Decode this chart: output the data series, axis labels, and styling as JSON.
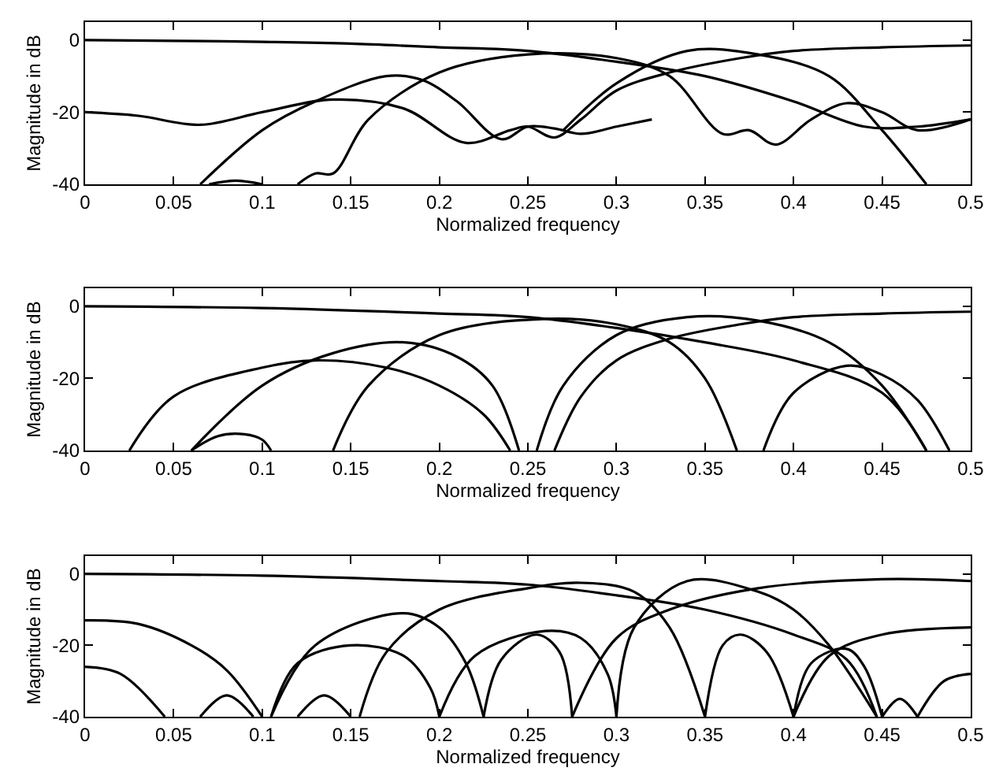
{
  "chart_data": [
    {
      "type": "line",
      "xlabel": "Normalized frequency",
      "ylabel": "Magnitude in dB",
      "xlim": [
        0,
        0.5
      ],
      "ylim": [
        -40,
        5
      ],
      "xticks": [
        0,
        0.05,
        0.1,
        0.15,
        0.2,
        0.25,
        0.3,
        0.35,
        0.4,
        0.45,
        0.5
      ],
      "yticks": [
        -40,
        -20,
        0
      ],
      "series": [
        {
          "color": "#000000",
          "x": [
            0,
            0.05,
            0.1,
            0.15,
            0.2,
            0.25,
            0.3,
            0.35,
            0.4,
            0.44,
            0.47,
            0.5
          ],
          "values": [
            0,
            -0.2,
            -0.5,
            -1,
            -2,
            -3,
            -6,
            -10,
            -17,
            -24,
            -24,
            -22
          ]
        },
        {
          "color": "#000000",
          "x": [
            0,
            0.03,
            0.065,
            0.1,
            0.14,
            0.18,
            0.215,
            0.24,
            0.25,
            0.265,
            0.28,
            0.3,
            0.33,
            0.37,
            0.4,
            0.45,
            0.5
          ],
          "values": [
            -20,
            -21,
            -23.5,
            -20,
            -16.5,
            -19,
            -28.5,
            -25,
            -24,
            -27,
            -22,
            -14,
            -9,
            -5,
            -3,
            -2,
            -1.5
          ]
        },
        {
          "color": "#000000",
          "x": [
            0.065,
            0.1,
            0.13,
            0.17,
            0.19,
            0.21,
            0.235,
            0.25,
            0.265,
            0.28,
            0.3,
            0.32
          ],
          "values": [
            -40,
            -25,
            -17,
            -10,
            -11,
            -17,
            -27.5,
            -24,
            -24.5,
            -26,
            -24,
            -22
          ]
        },
        {
          "color": "#000000",
          "x": [
            0.12,
            0.13,
            0.14,
            0.16,
            0.2,
            0.25,
            0.3,
            0.33,
            0.36,
            0.375,
            0.39,
            0.41,
            0.43,
            0.45,
            0.47,
            0.5
          ],
          "values": [
            -40,
            -37,
            -37,
            -22,
            -9,
            -4,
            -5,
            -10,
            -26,
            -25,
            -29,
            -22,
            -17.5,
            -20,
            -25,
            -22
          ]
        },
        {
          "color": "#000000",
          "x": [
            0.27,
            0.3,
            0.34,
            0.38,
            0.42,
            0.45,
            0.475
          ],
          "values": [
            -25,
            -12,
            -3,
            -4,
            -10,
            -25,
            -40
          ]
        },
        {
          "color": "#000000",
          "x": [
            0.07,
            0.085,
            0.1
          ],
          "values": [
            -40,
            -39,
            -40
          ]
        }
      ]
    },
    {
      "type": "line",
      "xlabel": "Normalized frequency",
      "ylabel": "Magnitude in dB",
      "xlim": [
        0,
        0.5
      ],
      "ylim": [
        -40,
        5
      ],
      "xticks": [
        0,
        0.05,
        0.1,
        0.15,
        0.2,
        0.25,
        0.3,
        0.35,
        0.4,
        0.45,
        0.5
      ],
      "yticks": [
        -40,
        -20,
        0
      ],
      "series": [
        {
          "color": "#000000",
          "x": [
            0,
            0.1,
            0.2,
            0.25,
            0.3,
            0.35,
            0.4,
            0.45,
            0.475
          ],
          "values": [
            0,
            -0.5,
            -2,
            -3,
            -6,
            -10,
            -15,
            -24,
            -40
          ]
        },
        {
          "color": "#000000",
          "x": [
            0.265,
            0.28,
            0.3,
            0.33,
            0.37,
            0.4,
            0.45,
            0.5
          ],
          "values": [
            -40,
            -25,
            -15,
            -9,
            -5,
            -3,
            -2,
            -1.5
          ]
        },
        {
          "color": "#000000",
          "x": [
            0.025,
            0.05,
            0.1,
            0.13,
            0.17,
            0.2,
            0.225,
            0.24
          ],
          "values": [
            -40,
            -25,
            -17,
            -15,
            -17,
            -22,
            -30,
            -40
          ]
        },
        {
          "color": "#000000",
          "x": [
            0.06,
            0.1,
            0.14,
            0.18,
            0.21,
            0.23,
            0.245
          ],
          "values": [
            -40,
            -22,
            -13,
            -10,
            -14,
            -22,
            -40
          ]
        },
        {
          "color": "#000000",
          "x": [
            0.14,
            0.16,
            0.2,
            0.26,
            0.3,
            0.33,
            0.35,
            0.368
          ],
          "values": [
            -40,
            -22,
            -8,
            -3.5,
            -5,
            -10,
            -20,
            -40
          ]
        },
        {
          "color": "#000000",
          "x": [
            0.255,
            0.27,
            0.3,
            0.34,
            0.38,
            0.42,
            0.45,
            0.475
          ],
          "values": [
            -40,
            -22,
            -8,
            -3,
            -4,
            -10,
            -22,
            -40
          ]
        },
        {
          "color": "#000000",
          "x": [
            0.383,
            0.4,
            0.43,
            0.45,
            0.47,
            0.488
          ],
          "values": [
            -40,
            -24,
            -16.5,
            -19,
            -26,
            -40
          ]
        },
        {
          "color": "#000000",
          "x": [
            0.06,
            0.075,
            0.09,
            0.1,
            0.105
          ],
          "values": [
            -40,
            -36,
            -35.5,
            -37,
            -40
          ]
        }
      ]
    },
    {
      "type": "line",
      "xlabel": "Normalized frequency",
      "ylabel": "Magnitude in dB",
      "xlim": [
        0,
        0.5
      ],
      "ylim": [
        -40,
        5
      ],
      "xticks": [
        0,
        0.05,
        0.1,
        0.15,
        0.2,
        0.25,
        0.3,
        0.35,
        0.4,
        0.45,
        0.5
      ],
      "yticks": [
        -40,
        -20,
        0
      ],
      "series": [
        {
          "color": "#000000",
          "x": [
            0,
            0.1,
            0.2,
            0.25,
            0.3,
            0.35,
            0.4,
            0.43,
            0.447
          ],
          "values": [
            0,
            -0.5,
            -2,
            -3,
            -6,
            -10,
            -17,
            -24,
            -40
          ]
        },
        {
          "color": "#000000",
          "x": [
            0.275,
            0.3,
            0.33,
            0.38,
            0.45,
            0.5
          ],
          "values": [
            -40,
            -18,
            -10,
            -4,
            -1.5,
            -2
          ]
        },
        {
          "color": "#000000",
          "x": [
            0,
            0.03,
            0.06,
            0.08,
            0.1
          ],
          "values": [
            -13,
            -14,
            -20,
            -27,
            -40
          ]
        },
        {
          "color": "#000000",
          "x": [
            0,
            0.02,
            0.045
          ],
          "values": [
            -26,
            -28,
            -40
          ]
        },
        {
          "color": "#000000",
          "x": [
            0.065,
            0.08,
            0.095
          ],
          "values": [
            -40,
            -34,
            -40
          ]
        },
        {
          "color": "#000000",
          "x": [
            0.12,
            0.135,
            0.15
          ],
          "values": [
            -40,
            -34,
            -40
          ]
        },
        {
          "color": "#000000",
          "x": [
            0.105,
            0.13,
            0.18,
            0.2,
            0.215,
            0.225
          ],
          "values": [
            -40,
            -20,
            -11,
            -15,
            -25,
            -40
          ]
        },
        {
          "color": "#000000",
          "x": [
            0.105,
            0.12,
            0.15,
            0.18,
            0.195,
            0.2
          ],
          "values": [
            -40,
            -25,
            -20,
            -23,
            -32,
            -40
          ]
        },
        {
          "color": "#000000",
          "x": [
            0.155,
            0.17,
            0.2,
            0.25,
            0.28,
            0.31,
            0.33,
            0.35
          ],
          "values": [
            -40,
            -22,
            -10,
            -4,
            -2.5,
            -5,
            -15,
            -40
          ]
        },
        {
          "color": "#000000",
          "x": [
            0.2,
            0.22,
            0.26,
            0.28,
            0.295,
            0.3
          ],
          "values": [
            -40,
            -23,
            -16,
            -18,
            -28,
            -40
          ]
        },
        {
          "color": "#000000",
          "x": [
            0.225,
            0.235,
            0.255,
            0.268,
            0.275
          ],
          "values": [
            -40,
            -24,
            -17,
            -22,
            -40
          ]
        },
        {
          "color": "#000000",
          "x": [
            0.3,
            0.31,
            0.34,
            0.38,
            0.4,
            0.42,
            0.447
          ],
          "values": [
            -40,
            -15,
            -2,
            -5,
            -10,
            -20,
            -40
          ]
        },
        {
          "color": "#000000",
          "x": [
            0.35,
            0.36,
            0.37,
            0.385,
            0.4
          ],
          "values": [
            -40,
            -20,
            -17,
            -22,
            -40
          ]
        },
        {
          "color": "#000000",
          "x": [
            0.4,
            0.41,
            0.43,
            0.44,
            0.45
          ],
          "values": [
            -40,
            -25,
            -21,
            -26,
            -40
          ]
        },
        {
          "color": "#000000",
          "x": [
            0.4,
            0.42,
            0.45,
            0.5
          ],
          "values": [
            -40,
            -23,
            -17,
            -15
          ]
        },
        {
          "color": "#000000",
          "x": [
            0.45,
            0.46,
            0.47
          ],
          "values": [
            -40,
            -35,
            -40
          ]
        },
        {
          "color": "#000000",
          "x": [
            0.47,
            0.485,
            0.5
          ],
          "values": [
            -40,
            -30,
            -28
          ]
        }
      ]
    }
  ]
}
